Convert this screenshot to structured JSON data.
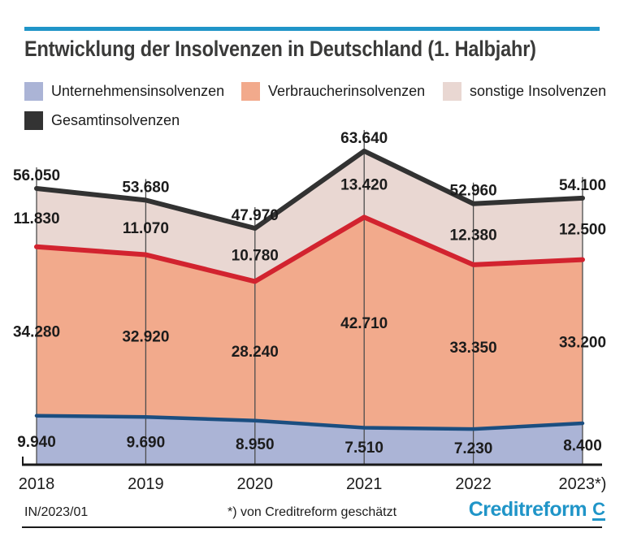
{
  "header": {
    "title": "Entwicklung der Insolvenzen in Deutschland (1. Halbjahr)"
  },
  "legend": {
    "items": [
      {
        "label": "Unternehmensinsolvenzen",
        "color": "#abb4d6"
      },
      {
        "label": "Verbraucherinsolvenzen",
        "color": "#f2aa8c"
      },
      {
        "label": "sonstige Insolvenzen",
        "color": "#e9d7d2"
      },
      {
        "label": "Gesamtinsolvenzen",
        "color": "#333333"
      }
    ]
  },
  "chart_data": {
    "type": "area",
    "stacked": true,
    "title": "Entwicklung der Insolvenzen in Deutschland (1. Halbjahr)",
    "categories": [
      "2018",
      "2019",
      "2020",
      "2021",
      "2022",
      "2023*)"
    ],
    "series": [
      {
        "name": "Unternehmensinsolvenzen",
        "values": [
          9940,
          9690,
          8950,
          7510,
          7230,
          8400
        ],
        "labels": [
          "9.940",
          "9.690",
          "8.950",
          "7.510",
          "7.230",
          "8.400"
        ],
        "fill": "#abb4d6",
        "line": "#1b4e80"
      },
      {
        "name": "Verbraucherinsolvenzen",
        "values": [
          34280,
          32920,
          28240,
          42710,
          33350,
          33200
        ],
        "labels": [
          "34.280",
          "32.920",
          "28.240",
          "42.710",
          "33.350",
          "33.200"
        ],
        "fill": "#f2aa8c",
        "line": "#d2232f"
      },
      {
        "name": "sonstige Insolvenzen",
        "values": [
          11830,
          11070,
          10780,
          13420,
          12380,
          12500
        ],
        "labels": [
          "11.830",
          "11.070",
          "10.780",
          "13.420",
          "12.380",
          "12.500"
        ],
        "fill": "#e9d7d2",
        "line": null
      }
    ],
    "total_series": {
      "name": "Gesamtinsolvenzen",
      "values": [
        56050,
        53680,
        47970,
        63640,
        52960,
        54100
      ],
      "labels": [
        "56.050",
        "53.680",
        "47.970",
        "63.640",
        "52.960",
        "54.100"
      ],
      "line": "#323232"
    },
    "ylim": [
      0,
      66000
    ],
    "grid": "vertical",
    "legend_position": "top"
  },
  "footer": {
    "id_label": "IN/2023/01",
    "footnote": "*) von Creditreform geschätzt",
    "brand": "Creditreform",
    "brand_symbol": "C"
  },
  "colors": {
    "accent_blue": "#2095c8",
    "grid": "#4d4d4d",
    "baseline": "#1a1a1a",
    "text": "#1c1c1c",
    "title": "#3a3a39"
  }
}
